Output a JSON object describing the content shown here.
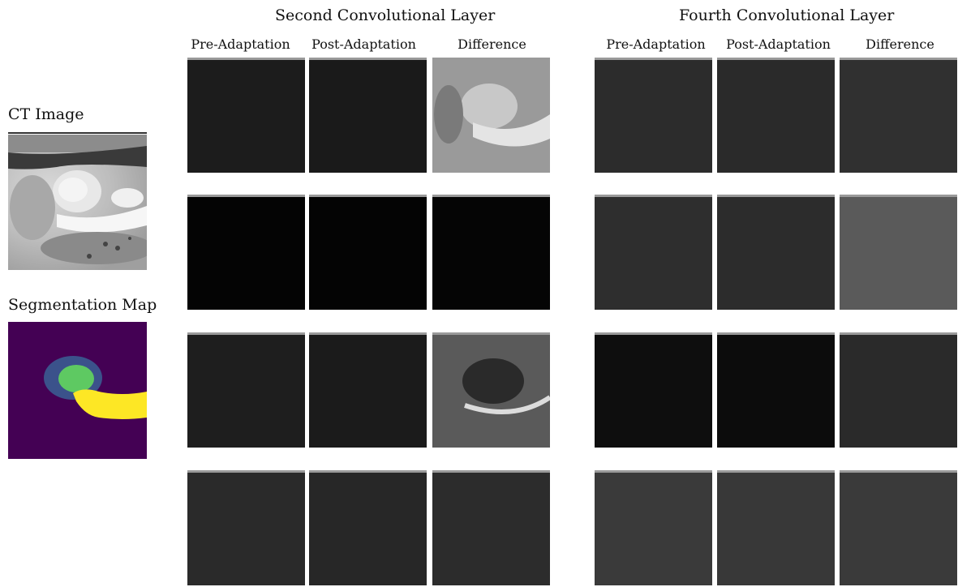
{
  "left": {
    "ct_label": "CT Image",
    "seg_label": "Segmentation Map",
    "seg_colors": {
      "background": "#440154",
      "outer": "#3b528b",
      "inner": "#5ec962",
      "tail": "#fde725"
    }
  },
  "groups": [
    {
      "title": "Second Convolutional Layer",
      "columns": [
        "Pre-Adaptation",
        "Post-Adaptation",
        "Difference"
      ]
    },
    {
      "title": "Fourth Convolutional Layer",
      "columns": [
        "Pre-Adaptation",
        "Post-Adaptation",
        "Difference"
      ]
    }
  ],
  "panel_tones": {
    "g1": [
      [
        "#1c1c1c",
        "#1a1a1a",
        "#9a9a9a"
      ],
      [
        "#040404",
        "#040404",
        "#050505"
      ],
      [
        "#1e1e1e",
        "#1b1b1b",
        "#5a5a5a"
      ],
      [
        "#2a2a2a",
        "#272727",
        "#2c2c2c"
      ]
    ],
    "g2": [
      [
        "#2c2c2c",
        "#2a2a2a",
        "#303030"
      ],
      [
        "#2e2e2e",
        "#2c2c2c",
        "#5a5a5a"
      ],
      [
        "#0e0e0e",
        "#0c0c0c",
        "#2a2a2a"
      ],
      [
        "#3a3a3a",
        "#383838",
        "#3a3a3a"
      ]
    ]
  }
}
